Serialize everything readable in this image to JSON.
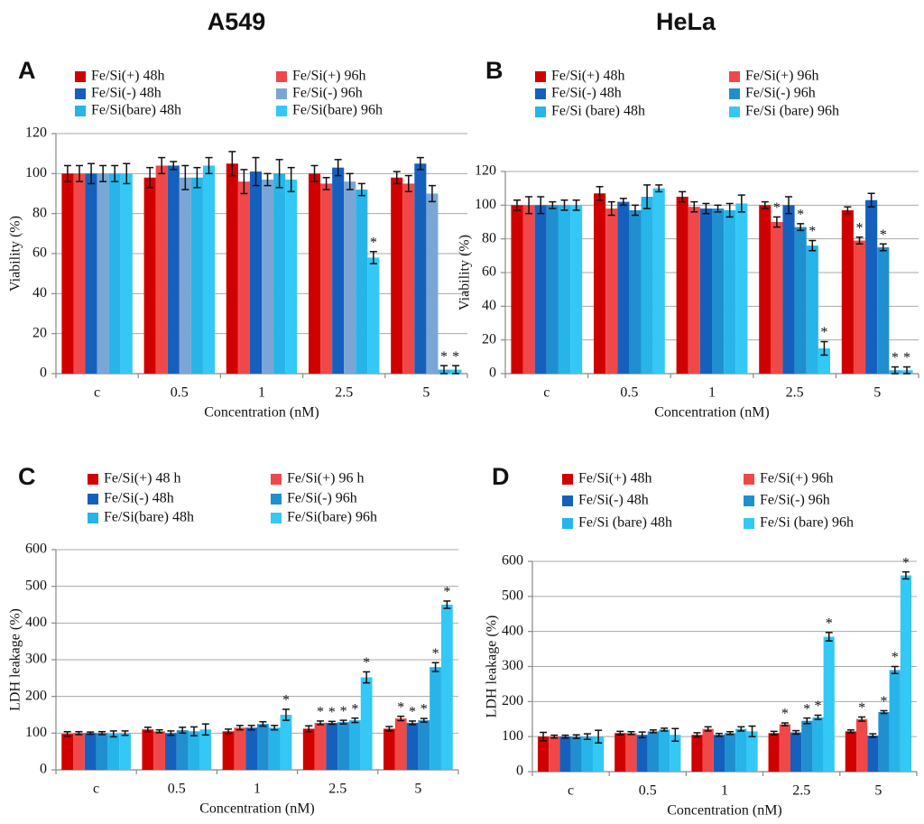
{
  "headers": [
    "A549",
    "HeLa"
  ],
  "chart_data": [
    {
      "type": "bar",
      "label": "A",
      "xlabel": "Concentration (nM)",
      "ylabel": "Viability (%)",
      "categories": [
        "c",
        "0.5",
        "1",
        "2.5",
        "5"
      ],
      "ylim": [
        0,
        120
      ],
      "yticks": [
        0,
        20,
        40,
        60,
        80,
        100,
        120
      ],
      "grid": true,
      "series": [
        {
          "name": "Fe/Si(+) 48h",
          "color": "#d00000",
          "values": [
            100,
            98,
            105,
            100,
            98
          ],
          "errors": [
            4,
            5,
            6,
            4,
            3
          ],
          "annotations": [
            null,
            null,
            null,
            null,
            null
          ]
        },
        {
          "name": "Fe/Si(+) 96h",
          "color": "#f04848",
          "values": [
            100,
            104,
            96,
            95,
            95
          ],
          "errors": [
            4,
            4,
            6,
            3,
            4
          ],
          "annotations": [
            null,
            null,
            null,
            null,
            null
          ]
        },
        {
          "name": "Fe/Si(-) 48h",
          "color": "#1560bd",
          "values": [
            100,
            104,
            101,
            103,
            105
          ],
          "errors": [
            5,
            2,
            7,
            4,
            3
          ],
          "annotations": [
            null,
            null,
            null,
            null,
            null
          ]
        },
        {
          "name": "Fe/Si(-) 96h",
          "color": "#7aa6d6",
          "values": [
            100,
            98,
            97,
            96,
            90
          ],
          "errors": [
            4,
            6,
            3,
            4,
            4
          ],
          "annotations": [
            null,
            null,
            null,
            null,
            null
          ]
        },
        {
          "name": "Fe/Si(bare) 48h",
          "color": "#27b4e8",
          "values": [
            100,
            98,
            100,
            92,
            2
          ],
          "errors": [
            4,
            5,
            7,
            3,
            2
          ],
          "annotations": [
            null,
            null,
            null,
            null,
            "*"
          ]
        },
        {
          "name": "Fe/Si(bare) 96h",
          "color": "#33c8f5",
          "values": [
            100,
            104,
            97,
            58,
            2
          ],
          "errors": [
            5,
            4,
            6,
            3,
            2
          ],
          "annotations": [
            null,
            null,
            null,
            "*",
            "*"
          ]
        }
      ]
    },
    {
      "type": "bar",
      "label": "B",
      "xlabel": "Concentration (nM)",
      "ylabel": "Viability (%)",
      "categories": [
        "c",
        "0.5",
        "1",
        "2.5",
        "5"
      ],
      "ylim": [
        0,
        120
      ],
      "yticks": [
        0,
        20,
        40,
        60,
        80,
        100,
        120
      ],
      "grid": true,
      "series": [
        {
          "name": "Fe/Si(+) 48h",
          "color": "#d00000",
          "values": [
            100,
            107,
            105,
            100,
            97
          ],
          "errors": [
            3,
            4,
            3,
            2,
            2
          ],
          "annotations": [
            null,
            null,
            null,
            null,
            null
          ]
        },
        {
          "name": "Fe/Si(+) 96h",
          "color": "#f04848",
          "values": [
            100,
            98,
            99,
            90,
            79
          ],
          "errors": [
            5,
            4,
            3,
            3,
            2
          ],
          "annotations": [
            null,
            null,
            null,
            "*",
            "*"
          ]
        },
        {
          "name": "Fe/Si(-) 48h",
          "color": "#1560bd",
          "values": [
            100,
            102,
            98,
            100,
            103
          ],
          "errors": [
            5,
            2,
            3,
            5,
            4
          ],
          "annotations": [
            null,
            null,
            null,
            null,
            null
          ]
        },
        {
          "name": "Fe/Si(-) 96h",
          "color": "#1f8fd0",
          "values": [
            100,
            97,
            98,
            87,
            75
          ],
          "errors": [
            2,
            3,
            2,
            2,
            2
          ],
          "annotations": [
            null,
            null,
            null,
            "*",
            "*"
          ]
        },
        {
          "name": "Fe/Si (bare) 48h",
          "color": "#27b4e8",
          "values": [
            100,
            105,
            97,
            76,
            2
          ],
          "errors": [
            3,
            7,
            4,
            3,
            2
          ],
          "annotations": [
            null,
            null,
            null,
            "*",
            "*"
          ]
        },
        {
          "name": "Fe/Si (bare) 96h",
          "color": "#33c8f5",
          "values": [
            100,
            110,
            101,
            15,
            2
          ],
          "errors": [
            3,
            2,
            5,
            4,
            2
          ],
          "annotations": [
            null,
            null,
            null,
            "*",
            "*"
          ]
        }
      ]
    },
    {
      "type": "bar",
      "label": "C",
      "xlabel": "Concentration (nM)",
      "ylabel": "LDH  leakage (%)",
      "categories": [
        "c",
        "0.5",
        "1",
        "2.5",
        "5"
      ],
      "ylim": [
        0,
        600
      ],
      "yticks": [
        0,
        100,
        200,
        300,
        400,
        500,
        600
      ],
      "grid": true,
      "series": [
        {
          "name": "Fe/Si(+) 48 h",
          "color": "#d00000",
          "values": [
            98,
            110,
            105,
            112,
            112
          ],
          "errors": [
            6,
            6,
            6,
            8,
            6
          ],
          "annotations": [
            null,
            null,
            null,
            null,
            null
          ]
        },
        {
          "name": "Fe/Si(+) 96 h",
          "color": "#f04848",
          "values": [
            100,
            105,
            115,
            128,
            140
          ],
          "errors": [
            4,
            4,
            6,
            5,
            6
          ],
          "annotations": [
            null,
            null,
            null,
            "*",
            "*"
          ]
        },
        {
          "name": "Fe/Si(-) 48h",
          "color": "#1560bd",
          "values": [
            100,
            100,
            115,
            128,
            128
          ],
          "errors": [
            3,
            6,
            6,
            4,
            5
          ],
          "annotations": [
            null,
            null,
            null,
            "*",
            "*"
          ]
        },
        {
          "name": "Fe/Si(-) 96h",
          "color": "#1f8fd0",
          "values": [
            100,
            108,
            125,
            130,
            135
          ],
          "errors": [
            4,
            8,
            6,
            5,
            5
          ],
          "annotations": [
            null,
            null,
            null,
            "*",
            "*"
          ]
        },
        {
          "name": "Fe/Si(bare) 48h",
          "color": "#27b4e8",
          "values": [
            98,
            105,
            115,
            135,
            280
          ],
          "errors": [
            8,
            12,
            6,
            6,
            12
          ],
          "annotations": [
            null,
            null,
            null,
            "*",
            "*"
          ]
        },
        {
          "name": "Fe/Si(bare) 96h",
          "color": "#33c8f5",
          "values": [
            100,
            110,
            150,
            252,
            450
          ],
          "errors": [
            6,
            15,
            15,
            15,
            10
          ],
          "annotations": [
            null,
            null,
            "*",
            "*",
            "*"
          ]
        }
      ]
    },
    {
      "type": "bar",
      "label": "D",
      "xlabel": "Concentration (nM)",
      "ylabel": "LDH leakage (%)",
      "categories": [
        "c",
        "0.5",
        "1",
        "2.5",
        "5"
      ],
      "ylim": [
        0,
        600
      ],
      "yticks": [
        0,
        100,
        200,
        300,
        400,
        500,
        600
      ],
      "grid": true,
      "series": [
        {
          "name": "Fe/Si(+) 48h",
          "color": "#d00000",
          "values": [
            100,
            110,
            105,
            110,
            115
          ],
          "errors": [
            12,
            5,
            6,
            5,
            4
          ],
          "annotations": [
            null,
            null,
            null,
            null,
            null
          ]
        },
        {
          "name": "Fe/Si(+) 96h",
          "color": "#f04848",
          "values": [
            100,
            110,
            122,
            135,
            150
          ],
          "errors": [
            4,
            4,
            6,
            4,
            6
          ],
          "annotations": [
            null,
            null,
            null,
            "*",
            "*"
          ]
        },
        {
          "name": "Fe/Si(-) 48h",
          "color": "#1560bd",
          "values": [
            100,
            105,
            105,
            112,
            103
          ],
          "errors": [
            4,
            8,
            4,
            5,
            5
          ],
          "annotations": [
            null,
            null,
            null,
            null,
            null
          ]
        },
        {
          "name": "Fe/Si(-) 96h",
          "color": "#1f8fd0",
          "values": [
            100,
            115,
            110,
            145,
            170
          ],
          "errors": [
            5,
            4,
            4,
            8,
            4
          ],
          "annotations": [
            null,
            null,
            null,
            "*",
            "*"
          ]
        },
        {
          "name": "Fe/Si (bare) 48h",
          "color": "#27b4e8",
          "values": [
            100,
            120,
            122,
            155,
            290
          ],
          "errors": [
            8,
            4,
            6,
            6,
            10
          ],
          "annotations": [
            null,
            null,
            null,
            "*",
            "*"
          ]
        },
        {
          "name": "Fe/Si (bare) 96h",
          "color": "#33c8f5",
          "values": [
            100,
            105,
            115,
            385,
            560
          ],
          "errors": [
            18,
            18,
            15,
            12,
            10
          ],
          "annotations": [
            null,
            null,
            null,
            "*",
            "*"
          ]
        }
      ]
    }
  ]
}
